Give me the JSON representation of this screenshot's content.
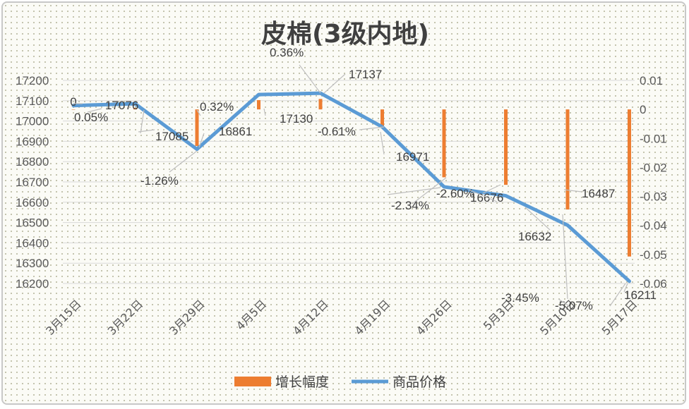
{
  "chart_data": {
    "type": "bar+line",
    "title": "皮棉(3级内地)",
    "categories": [
      "3月15日",
      "3月22日",
      "3月29日",
      "4月5日",
      "4月12日",
      "4月19日",
      "4月26日",
      "5月3日",
      "5月10日",
      "5月17日"
    ],
    "series": [
      {
        "name": "增长幅度",
        "type": "bar",
        "axis": "right",
        "color": "#ED7D31",
        "values": [
          0,
          0.0005,
          -0.0126,
          0.0032,
          0.0036,
          -0.0061,
          -0.0234,
          -0.026,
          -0.0345,
          -0.0507
        ],
        "labels": [
          "0",
          "0.05%",
          "-1.26%",
          "0.32%",
          "0.36%",
          "-0.61%",
          "-2.34%",
          "-2.60%",
          "-3.45%",
          "-5.07%"
        ]
      },
      {
        "name": "商品价格",
        "type": "line",
        "axis": "left",
        "color": "#5B9BD5",
        "values": [
          17076,
          17085,
          16861,
          17130,
          17137,
          16971,
          16676,
          16632,
          16487,
          16211
        ],
        "labels": [
          "17076",
          "17085",
          "16861",
          "17130",
          "17137",
          "16971",
          "16676",
          "16632",
          "16487",
          "16211"
        ]
      }
    ],
    "y_left": {
      "min": 16200,
      "max": 17200,
      "ticks": [
        17200,
        17100,
        17000,
        16900,
        16800,
        16700,
        16600,
        16500,
        16400,
        16300,
        16200
      ]
    },
    "y_right": {
      "min": -0.06,
      "max": 0.01,
      "ticks": [
        "0.01",
        "0",
        "-0.01",
        "-0.02",
        "-0.03",
        "-0.04",
        "-0.05",
        "-0.06"
      ]
    },
    "grid": true,
    "legend_position": "bottom"
  }
}
